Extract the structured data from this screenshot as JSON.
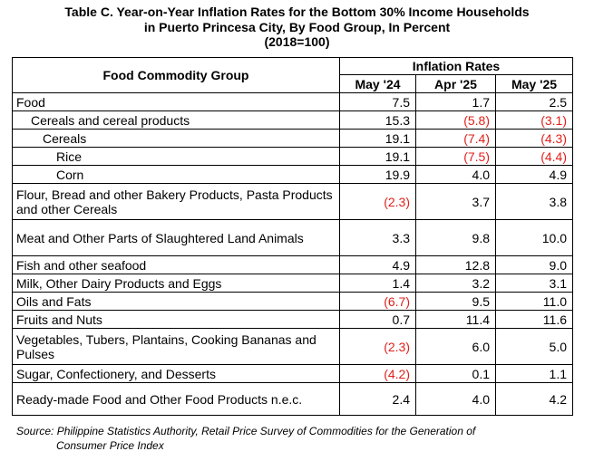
{
  "title": {
    "line1": "Table C. Year-on-Year Inflation Rates for the Bottom 30% Income Households",
    "line2": "in Puerto Princesa City, By Food Group, In Percent",
    "line3": "(2018=100)"
  },
  "table": {
    "group_header": "Food Commodity Group",
    "rates_header": "Inflation Rates",
    "columns": [
      "May '24",
      "Apr '25",
      "May '25"
    ],
    "rows": [
      {
        "label": "Food",
        "values": [
          "7.5",
          "1.7",
          "2.5"
        ]
      },
      {
        "label": "Cereals and cereal products",
        "values": [
          "15.3",
          "(5.8)",
          "(3.1)"
        ]
      },
      {
        "label": "Cereals",
        "values": [
          "19.1",
          "(7.4)",
          "(4.3)"
        ]
      },
      {
        "label": "Rice",
        "values": [
          "19.1",
          "(7.5)",
          "(4.4)"
        ]
      },
      {
        "label": "Corn",
        "values": [
          "19.9",
          "4.0",
          "4.9"
        ]
      },
      {
        "label": "Flour, Bread and other Bakery Products, Pasta Products and other Cereals",
        "values": [
          "(2.3)",
          "3.7",
          "3.8"
        ]
      },
      {
        "label": "Meat and Other Parts of Slaughtered Land Animals",
        "values": [
          "3.3",
          "9.8",
          "10.0"
        ]
      },
      {
        "label": "Fish and other seafood",
        "values": [
          "4.9",
          "12.8",
          "9.0"
        ]
      },
      {
        "label": "Milk, Other Dairy Products and Eggs",
        "values": [
          "1.4",
          "3.2",
          "3.1"
        ]
      },
      {
        "label": "Oils and Fats",
        "values": [
          "(6.7)",
          "9.5",
          "11.0"
        ]
      },
      {
        "label": "Fruits and Nuts",
        "values": [
          "0.7",
          "11.4",
          "11.6"
        ]
      },
      {
        "label": "Vegetables, Tubers, Plantains, Cooking Bananas and Pulses",
        "values": [
          "(2.3)",
          "6.0",
          "5.0"
        ]
      },
      {
        "label": "Sugar, Confectionery, and Desserts",
        "values": [
          "(4.2)",
          "0.1",
          "1.1"
        ]
      },
      {
        "label": "Ready-made Food and Other Food Products n.e.c.",
        "values": [
          "2.4",
          "4.0",
          "4.2"
        ]
      }
    ]
  },
  "source": {
    "line1": "Source: Philippine Statistics Authority, Retail Price Survey of Commodities for the Generation of",
    "line2": "Consumer Price Index"
  },
  "colors": {
    "negative": "#e0201b",
    "text": "#000000",
    "border": "#000000"
  }
}
